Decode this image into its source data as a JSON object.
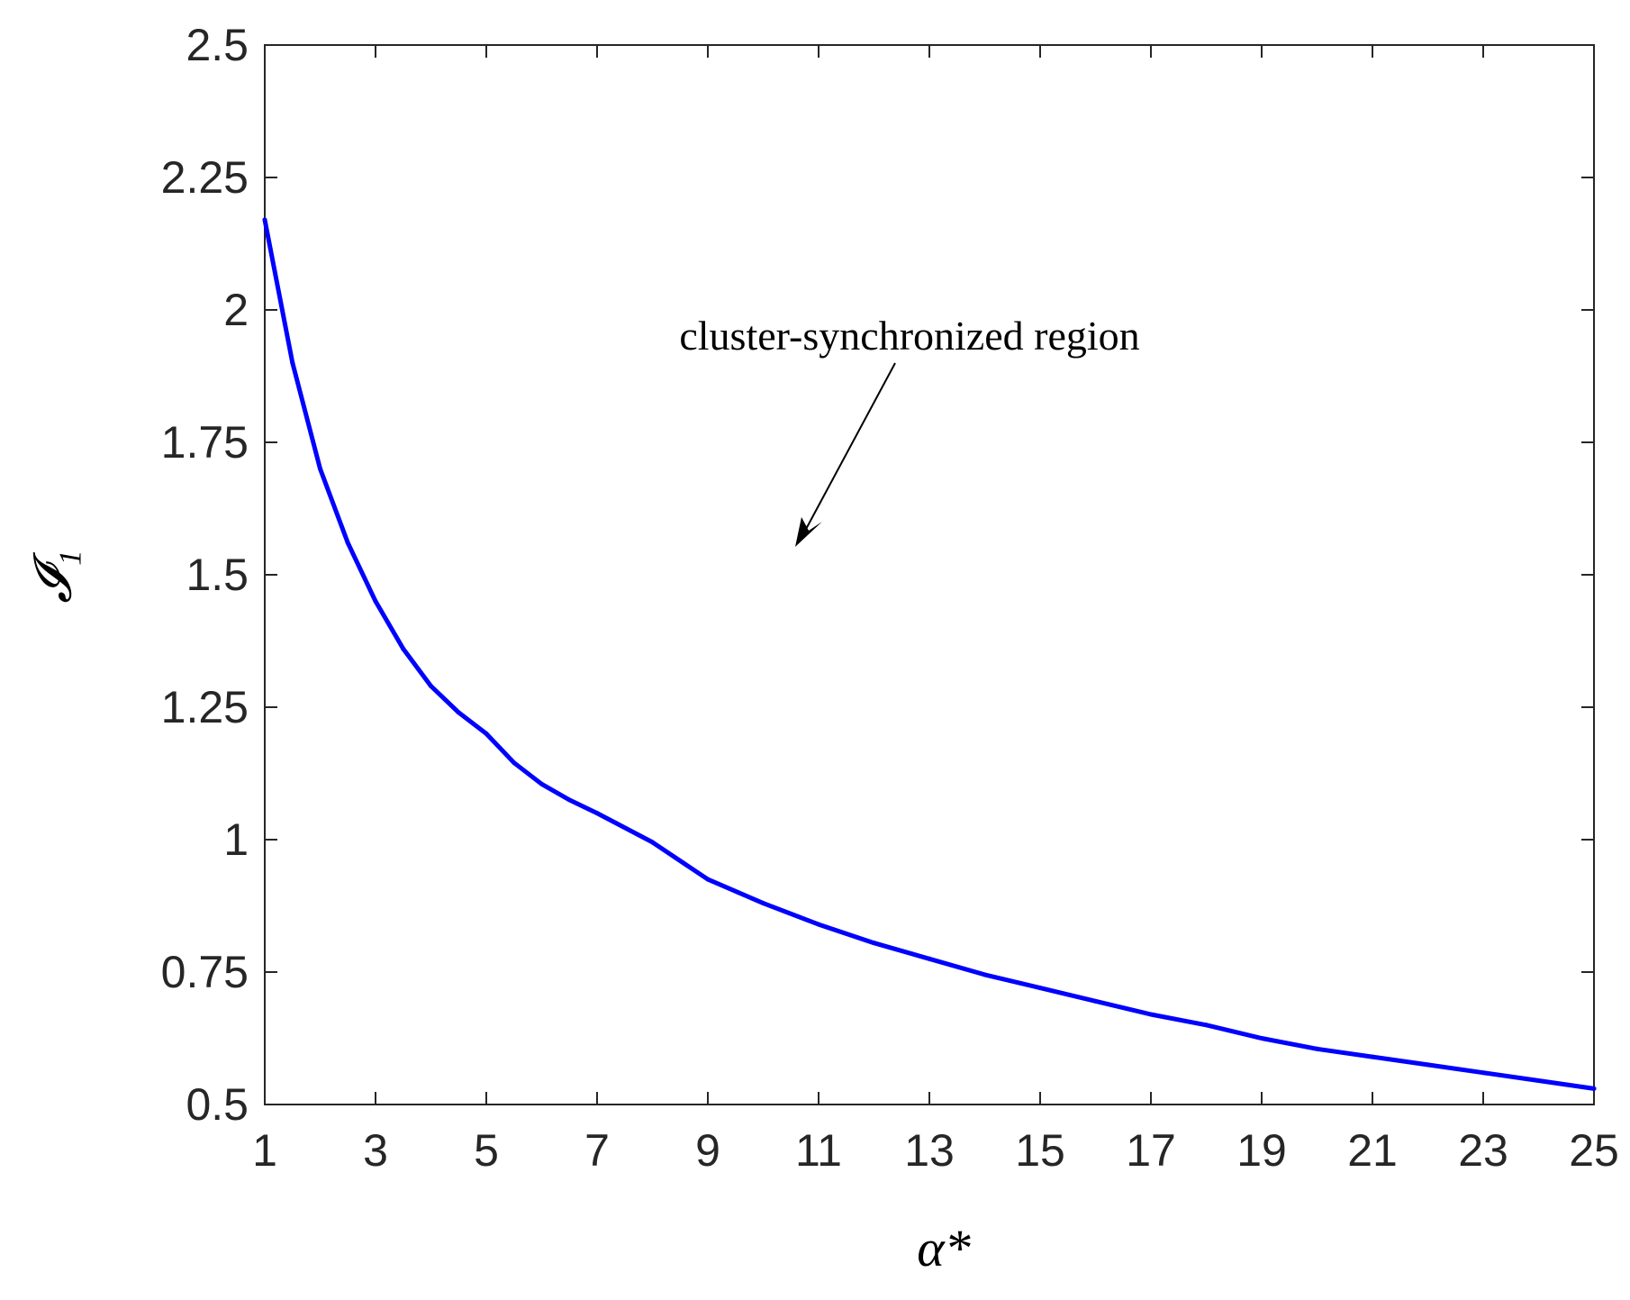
{
  "chart_data": {
    "type": "line",
    "xlabel": "α*",
    "ylabel": "𝓘₁",
    "xlim": [
      1,
      25
    ],
    "ylim": [
      0.5,
      2.5
    ],
    "xticks": [
      "1",
      "3",
      "5",
      "7",
      "9",
      "11",
      "13",
      "15",
      "17",
      "19",
      "21",
      "23",
      "25"
    ],
    "yticks": [
      "0.5",
      "0.75",
      "1",
      "1.25",
      "1.5",
      "1.75",
      "2",
      "2.25",
      "2.5"
    ],
    "annotation": "cluster-synchronized region",
    "grid": false,
    "box": true,
    "line_color": "#0000ff",
    "series": [
      {
        "x": [
          1,
          1.5,
          2,
          2.5,
          3,
          3.5,
          4,
          4.5,
          5,
          5.5,
          6,
          6.5,
          7,
          8,
          9,
          10,
          11,
          12,
          13,
          14,
          15,
          16,
          17,
          18,
          19,
          20,
          21,
          22,
          23,
          24,
          25
        ],
        "values": [
          2.17,
          1.9,
          1.7,
          1.56,
          1.45,
          1.36,
          1.29,
          1.24,
          1.2,
          1.145,
          1.105,
          1.075,
          1.05,
          0.995,
          0.925,
          0.88,
          0.84,
          0.805,
          0.775,
          0.745,
          0.72,
          0.695,
          0.67,
          0.65,
          0.625,
          0.605,
          0.59,
          0.575,
          0.56,
          0.545,
          0.53
        ]
      }
    ]
  }
}
